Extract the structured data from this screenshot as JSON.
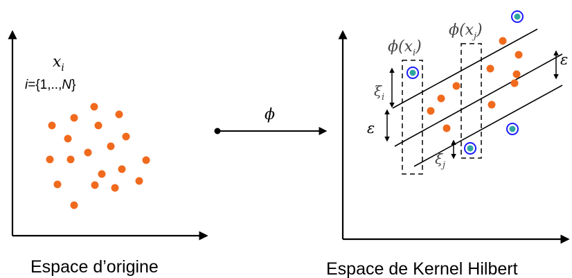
{
  "left_panel": {
    "caption": "Espace d’origine",
    "var_x": "x",
    "var_x_sub": "i",
    "index_i": "i",
    "index_set_start": "={1,..,",
    "index_N": "N",
    "index_set_end": "}"
  },
  "mapping": {
    "phi": "ϕ"
  },
  "right_panel": {
    "caption": "Espace de Kernel Hilbert",
    "phi_xi": "ϕ(x",
    "phi_xi_sub": "i",
    "phi_close": ")",
    "phi_xj": "ϕ(x",
    "phi_xj_sub": "j",
    "phi_close_j": ")",
    "epsilon_left": "ε",
    "epsilon_right": "ε",
    "xi_i": "ξ",
    "xi_i_sub": "i",
    "xi_j": "ξ",
    "xi_j_sub": "j"
  },
  "colors": {
    "point": "#f06a1e",
    "sv_outer": "#1a1aff",
    "sv_inner": "#2fa6a0",
    "axis": "#000000"
  }
}
